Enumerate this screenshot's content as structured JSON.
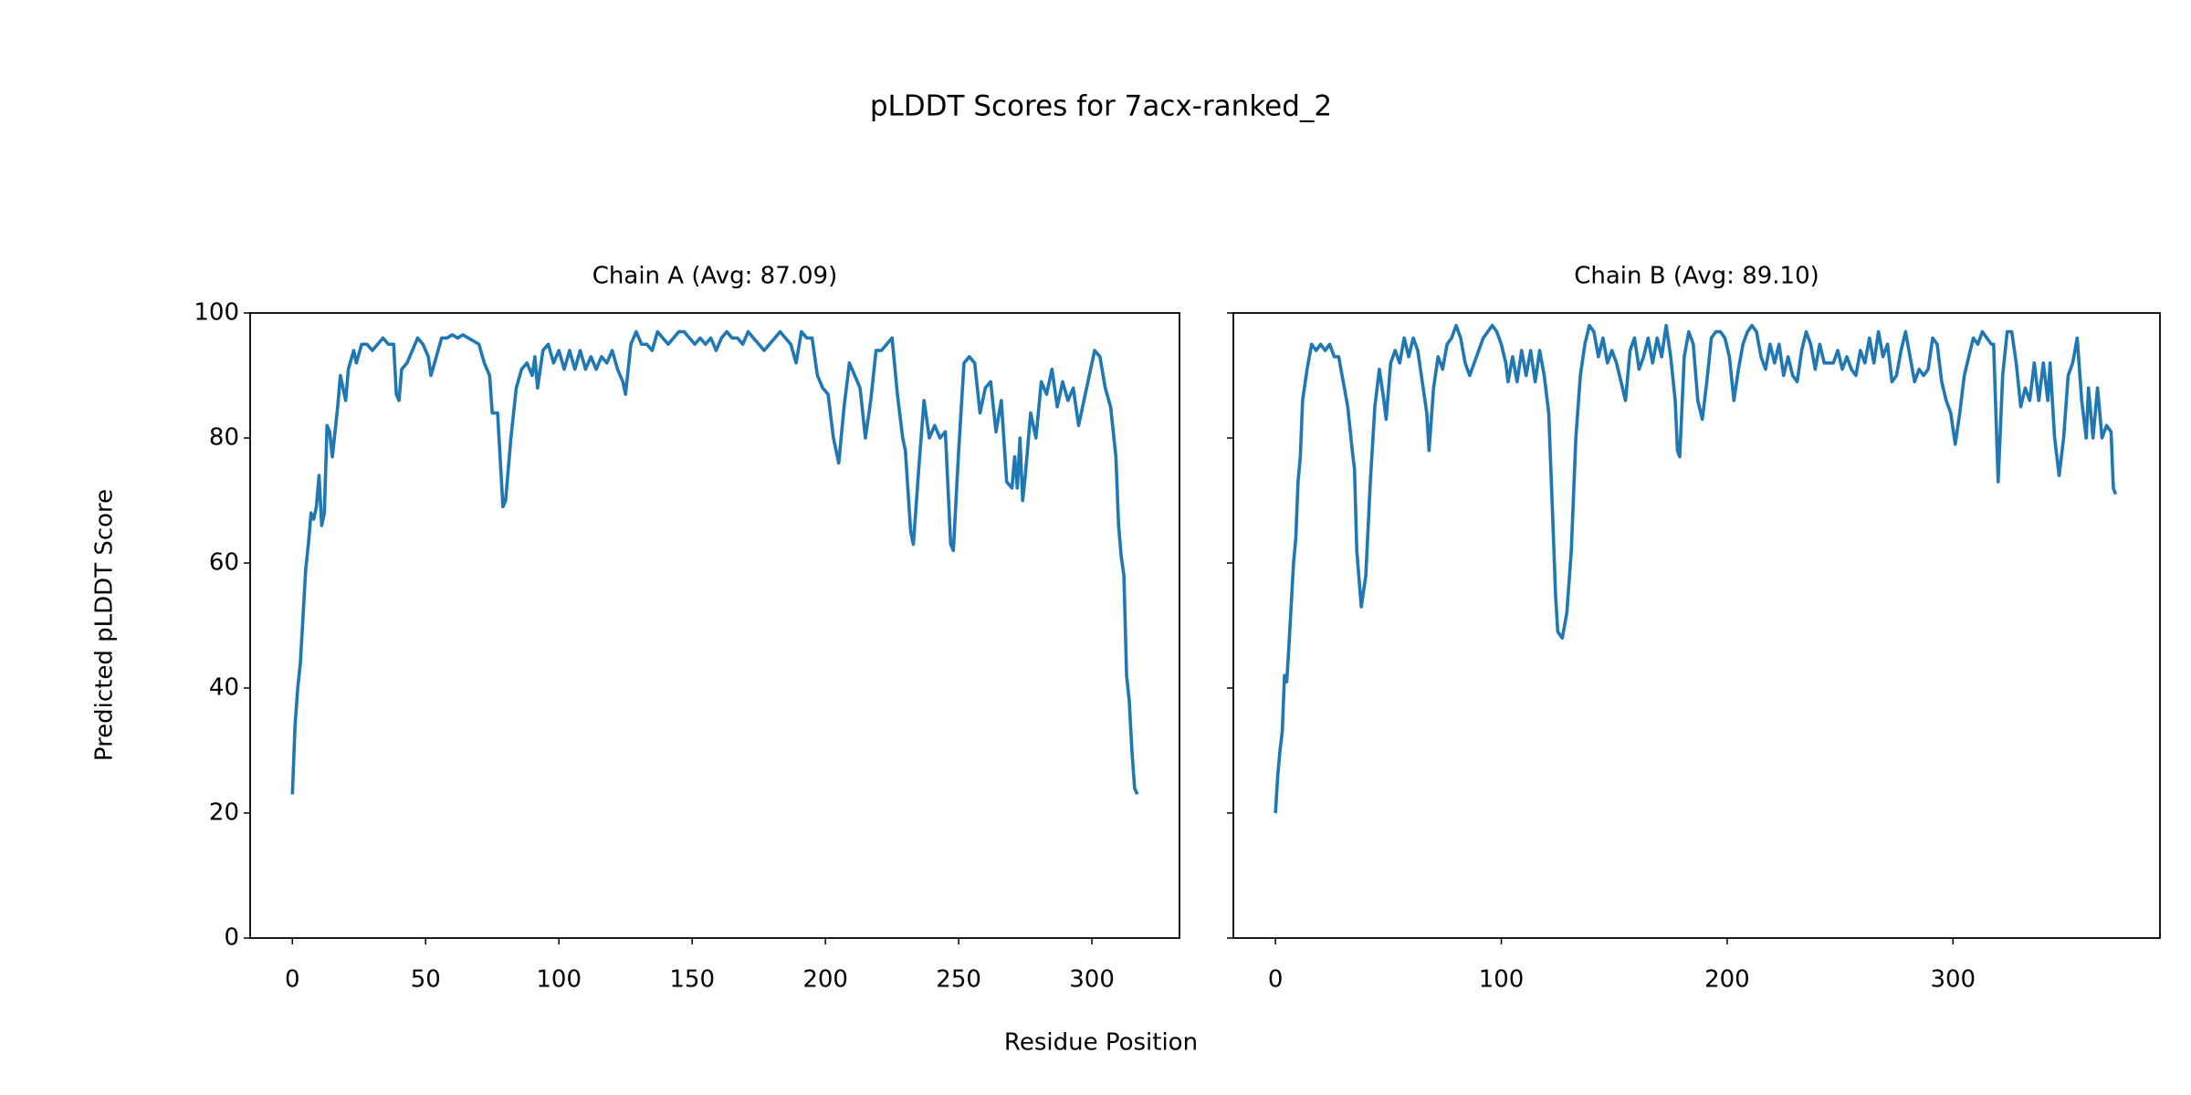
{
  "title": "pLDDT Scores for 7acx-ranked_2",
  "x_label": "Residue Position",
  "y_label": "Predicted pLDDT Score",
  "chart_data": [
    {
      "type": "line",
      "title": "Chain A (Avg: 87.09)",
      "color": "#1f77b4",
      "xlim": [
        -15.85,
        332.85
      ],
      "xticks": [
        0,
        50,
        100,
        150,
        200,
        250,
        300
      ],
      "ylim": [
        0,
        100
      ],
      "yticks": [
        0,
        20,
        40,
        60,
        80,
        100
      ],
      "grid": false,
      "x": [
        0,
        1,
        2,
        3,
        5,
        6,
        7,
        8,
        9,
        10,
        11,
        12,
        13,
        14,
        15,
        17,
        18,
        20,
        21,
        23,
        24,
        26,
        28,
        30,
        32,
        34,
        36,
        38,
        39,
        40,
        41,
        43,
        45,
        47,
        49,
        51,
        52,
        54,
        56,
        58,
        60,
        62,
        64,
        66,
        68,
        70,
        72,
        74,
        75,
        77,
        79,
        80,
        82,
        84,
        86,
        88,
        90,
        91,
        92,
        94,
        96,
        98,
        100,
        102,
        104,
        106,
        108,
        110,
        112,
        114,
        116,
        118,
        120,
        122,
        124,
        125,
        127,
        129,
        131,
        133,
        135,
        137,
        139,
        141,
        143,
        145,
        147,
        149,
        151,
        153,
        155,
        157,
        159,
        161,
        163,
        165,
        167,
        169,
        171,
        173,
        175,
        177,
        179,
        181,
        183,
        185,
        187,
        189,
        191,
        193,
        195,
        197,
        199,
        201,
        203,
        205,
        207,
        209,
        211,
        213,
        215,
        217,
        219,
        221,
        223,
        225,
        227,
        229,
        230,
        232,
        233,
        235,
        237,
        239,
        241,
        243,
        245,
        247,
        248,
        250,
        252,
        254,
        256,
        258,
        260,
        262,
        264,
        266,
        268,
        270,
        271,
        272,
        273,
        274,
        275,
        277,
        279,
        281,
        283,
        285,
        287,
        289,
        291,
        293,
        295,
        297,
        299,
        301,
        303,
        305,
        307,
        309,
        310,
        311,
        312,
        313,
        314,
        315,
        316,
        317
      ],
      "values": [
        23,
        34,
        40,
        44,
        59,
        63,
        68,
        67,
        69,
        74,
        66,
        68,
        82,
        81,
        77,
        85,
        90,
        86,
        91,
        94,
        92,
        95,
        95,
        94,
        95,
        96,
        95,
        95,
        87,
        86,
        91,
        92,
        94,
        96,
        95,
        93,
        90,
        93,
        96,
        96,
        96.5,
        96,
        96.5,
        96,
        95.5,
        95,
        92,
        90,
        84,
        84,
        69,
        70,
        80,
        88,
        91,
        92,
        90,
        93,
        88,
        94,
        95,
        92,
        94,
        91,
        94,
        91,
        94,
        91,
        93,
        91,
        93,
        92,
        94,
        91,
        89,
        87,
        95,
        97,
        95,
        95,
        94,
        97,
        96,
        95,
        96,
        97,
        97,
        96,
        95,
        96,
        95,
        96,
        94,
        96,
        97,
        96,
        96,
        95,
        97,
        96,
        95,
        94,
        95,
        96,
        97,
        96,
        95,
        92,
        97,
        96,
        96,
        90,
        88,
        87,
        80,
        76,
        85,
        92,
        90,
        88,
        80,
        86,
        94,
        94,
        95,
        96,
        87,
        80,
        78,
        65,
        63,
        75,
        86,
        80,
        82,
        80,
        81,
        63,
        62,
        78,
        92,
        93,
        92,
        84,
        88,
        89,
        81,
        86,
        73,
        72,
        77,
        72,
        80,
        70,
        74,
        84,
        80,
        89,
        87,
        91,
        85,
        89,
        86,
        88,
        82,
        86,
        90,
        94,
        93,
        88,
        85,
        77,
        66,
        61,
        58,
        42,
        38,
        30,
        24,
        23
      ]
    },
    {
      "type": "line",
      "title": "Chain B (Avg: 89.10)",
      "color": "#1f77b4",
      "sharey": true,
      "xlim": [
        -18.65,
        391.65
      ],
      "xticks": [
        0,
        100,
        200,
        300
      ],
      "ylim": [
        0,
        100
      ],
      "yticks": [
        0,
        20,
        40,
        60,
        80,
        100
      ],
      "grid": false,
      "x": [
        0,
        1,
        2,
        3,
        4,
        5,
        6,
        8,
        9,
        10,
        11,
        12,
        14,
        16,
        18,
        20,
        22,
        24,
        26,
        28,
        30,
        32,
        34,
        35,
        36,
        38,
        40,
        42,
        44,
        46,
        48,
        49,
        51,
        53,
        55,
        57,
        59,
        61,
        63,
        65,
        67,
        68,
        70,
        72,
        74,
        76,
        78,
        80,
        82,
        84,
        86,
        88,
        90,
        92,
        94,
        96,
        98,
        100,
        102,
        103,
        105,
        107,
        109,
        111,
        113,
        115,
        117,
        119,
        121,
        123,
        124,
        125,
        127,
        129,
        131,
        133,
        135,
        137,
        139,
        141,
        143,
        145,
        147,
        149,
        151,
        153,
        155,
        157,
        159,
        161,
        163,
        165,
        167,
        169,
        171,
        173,
        175,
        177,
        178,
        179,
        181,
        183,
        185,
        187,
        189,
        191,
        193,
        195,
        197,
        199,
        201,
        203,
        205,
        207,
        209,
        211,
        213,
        215,
        217,
        219,
        221,
        223,
        225,
        227,
        229,
        231,
        233,
        235,
        237,
        239,
        241,
        243,
        245,
        247,
        249,
        251,
        253,
        255,
        257,
        259,
        261,
        263,
        265,
        267,
        269,
        271,
        273,
        275,
        277,
        279,
        281,
        283,
        285,
        287,
        289,
        291,
        293,
        295,
        297,
        299,
        301,
        303,
        305,
        307,
        309,
        311,
        313,
        315,
        317,
        318,
        320,
        322,
        324,
        326,
        328,
        330,
        332,
        334,
        336,
        338,
        340,
        342,
        343,
        345,
        347,
        349,
        351,
        353,
        355,
        357,
        359,
        360,
        362,
        364,
        366,
        368,
        370,
        371,
        372
      ],
      "values": [
        20,
        26,
        30,
        33,
        42,
        41,
        47,
        60,
        64,
        73,
        77,
        86,
        91,
        95,
        94,
        95,
        94,
        95,
        93,
        93,
        89,
        85,
        78,
        75,
        62,
        53,
        58,
        73,
        85,
        91,
        86,
        83,
        92,
        94,
        92,
        96,
        93,
        96,
        94,
        89,
        84,
        78,
        88,
        93,
        91,
        95,
        96,
        98,
        96,
        92,
        90,
        92,
        94,
        96,
        97,
        98,
        97,
        95,
        92,
        89,
        93,
        89,
        94,
        90,
        94,
        89,
        94,
        90,
        84,
        65,
        55,
        49,
        48,
        52,
        62,
        80,
        90,
        95,
        98,
        97,
        93,
        96,
        92,
        94,
        92,
        89,
        86,
        94,
        96,
        91,
        93,
        96,
        92,
        96,
        93,
        98,
        93,
        86,
        78,
        77,
        93,
        97,
        95,
        86,
        83,
        89,
        96,
        97,
        97,
        96,
        93,
        86,
        91,
        95,
        97,
        98,
        97,
        93,
        91,
        95,
        92,
        95,
        90,
        93,
        90,
        89,
        94,
        97,
        95,
        91,
        95,
        92,
        92,
        92,
        94,
        91,
        93,
        91,
        90,
        94,
        92,
        96,
        92,
        97,
        93,
        95,
        89,
        90,
        94,
        97,
        93,
        89,
        91,
        90,
        91,
        96,
        95,
        89,
        86,
        84,
        79,
        84,
        90,
        93,
        96,
        95,
        97,
        96,
        95,
        95,
        73,
        90,
        97,
        97,
        92,
        85,
        88,
        86,
        92,
        86,
        92,
        86,
        92,
        80,
        74,
        80,
        90,
        92,
        96,
        86,
        80,
        88,
        80,
        88,
        80,
        82,
        81,
        72,
        71
      ]
    }
  ]
}
